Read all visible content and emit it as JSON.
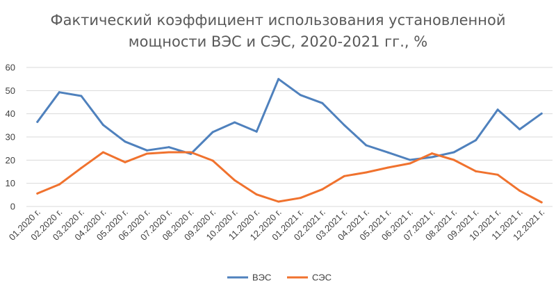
{
  "chart_data": {
    "type": "line",
    "title_lines": [
      "Фактический коэффициент использования установленной",
      "мощности ВЭС и СЭС, 2020-2021 гг., %"
    ],
    "x": [
      "01.2020 г.",
      "02.2020 г.",
      "03.2020 г.",
      "04.2020 г.",
      "05.2020 г.",
      "06.2020 г.",
      "07.2020 г.",
      "08.2020 г.",
      "09.2020 г.",
      "10.2020 г.",
      "11.2020 г.",
      "12.2020 г.",
      "01.2021 г.",
      "02.2021 г.",
      "03.2021 г.",
      "04.2021 г.",
      "05.2021 г.",
      "06.2021 г.",
      "07.2021 г.",
      "08.2021 г.",
      "09.2021 г.",
      "10.2021 г.",
      "11.2021 г.",
      "12.2021 г."
    ],
    "series": [
      {
        "name": "ВЭС",
        "color": "#4f81bd",
        "values": [
          36.5,
          49.3,
          47.7,
          35.2,
          28.0,
          24.2,
          25.6,
          22.7,
          32.1,
          36.3,
          32.3,
          55.0,
          48.1,
          44.6,
          35.1,
          26.4,
          23.3,
          20.1,
          21.3,
          23.4,
          28.6,
          41.8,
          33.3,
          40.1
        ]
      },
      {
        "name": "СЭС",
        "color": "#f0722e",
        "values": [
          5.6,
          9.5,
          16.6,
          23.4,
          19.1,
          22.8,
          23.4,
          23.4,
          19.8,
          11.3,
          5.2,
          2.1,
          3.7,
          7.4,
          13.1,
          14.7,
          16.8,
          18.6,
          22.9,
          20.1,
          15.2,
          13.7,
          6.8,
          1.8
        ]
      }
    ],
    "yticks": [
      "0",
      "10",
      "20",
      "30",
      "40",
      "50",
      "60"
    ],
    "ylim": [
      0,
      60
    ],
    "grid": true,
    "legend_position": "bottom"
  }
}
